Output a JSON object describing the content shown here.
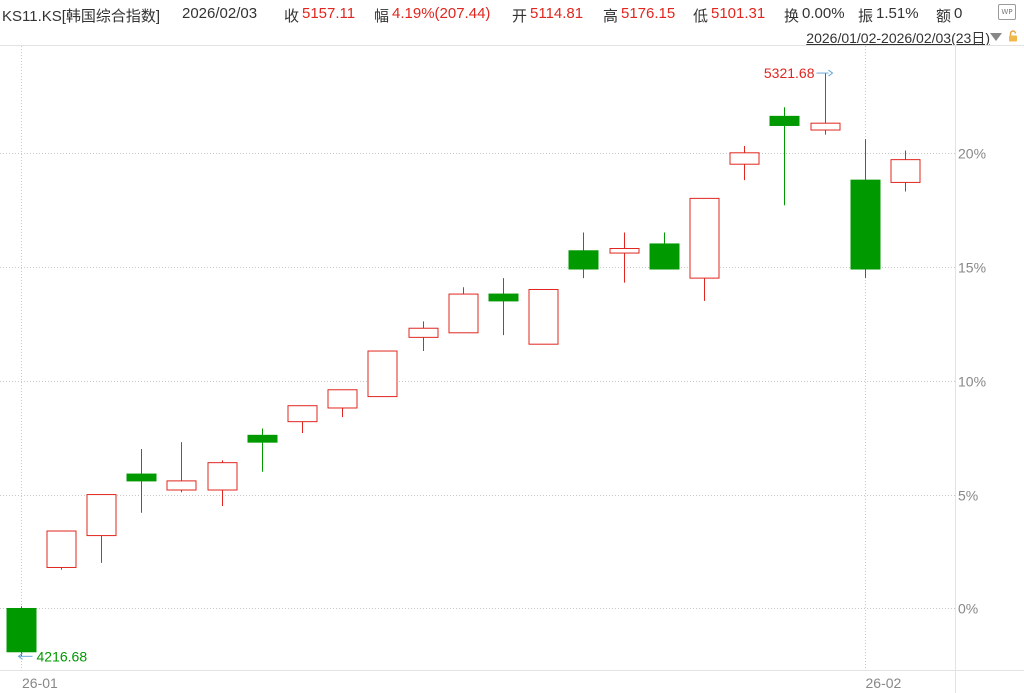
{
  "header": {
    "symbol": "KS11.KS[韩国综合指数]",
    "date": "2026/02/03",
    "close_label": "收",
    "close_value": "5157.11",
    "change_label": "幅",
    "change_value": "4.19%(207.44)",
    "open_label": "开",
    "open_value": "5114.81",
    "high_label": "高",
    "high_value": "5176.15",
    "low_label": "低",
    "low_value": "5101.31",
    "turnover_label": "换",
    "turnover_value": "0.00%",
    "amplitude_label": "振",
    "amplitude_value": "1.51%",
    "amount_label": "额",
    "amount_value": "0",
    "range": "2026/01/02-2026/02/03(23日)"
  },
  "icons": {
    "wp": "WP",
    "range_dropdown": "triangle-down-icon",
    "lock": "lock-icon"
  },
  "colors": {
    "up": "#e0261e",
    "down": "#009900",
    "max_annotation": "#e0261e",
    "min_annotation": "#009900",
    "grid": "#c8c8c8"
  },
  "chart_data": {
    "type": "candlestick",
    "y_unit": "percent change vs first open",
    "y_ticks": [
      "20%",
      "15%",
      "10%",
      "5%",
      "0%"
    ],
    "y_tick_values": [
      20,
      15,
      10,
      5,
      0
    ],
    "ylim": [
      -2.7,
      24.6
    ],
    "x_ticks": [
      "26-01",
      "26-02"
    ],
    "x_tick_index": [
      0,
      21
    ],
    "candles": [
      {
        "o": 0.0,
        "h": 0.1,
        "l": -2.1,
        "c": -1.9
      },
      {
        "o": 1.8,
        "h": 3.4,
        "l": 1.7,
        "c": 3.4
      },
      {
        "o": 3.2,
        "h": 5.0,
        "l": 2.0,
        "c": 5.0
      },
      {
        "o": 5.9,
        "h": 7.0,
        "l": 4.2,
        "c": 5.6
      },
      {
        "o": 5.2,
        "h": 7.3,
        "l": 5.1,
        "c": 5.6
      },
      {
        "o": 5.2,
        "h": 6.5,
        "l": 4.5,
        "c": 6.4
      },
      {
        "o": 7.6,
        "h": 7.9,
        "l": 6.0,
        "c": 7.3
      },
      {
        "o": 8.2,
        "h": 8.9,
        "l": 7.7,
        "c": 8.9
      },
      {
        "o": 8.8,
        "h": 9.6,
        "l": 8.4,
        "c": 9.6
      },
      {
        "o": 9.3,
        "h": 11.3,
        "l": 9.3,
        "c": 11.3
      },
      {
        "o": 11.9,
        "h": 12.6,
        "l": 11.3,
        "c": 12.3
      },
      {
        "o": 12.1,
        "h": 14.1,
        "l": 12.1,
        "c": 13.8
      },
      {
        "o": 13.8,
        "h": 14.5,
        "l": 12.0,
        "c": 13.5
      },
      {
        "o": 11.6,
        "h": 14.0,
        "l": 11.6,
        "c": 14.0
      },
      {
        "o": 15.7,
        "h": 16.5,
        "l": 14.5,
        "c": 14.9
      },
      {
        "o": 15.6,
        "h": 16.5,
        "l": 14.3,
        "c": 15.8
      },
      {
        "o": 16.0,
        "h": 16.5,
        "l": 14.9,
        "c": 14.9
      },
      {
        "o": 14.5,
        "h": 18.0,
        "l": 13.5,
        "c": 18.0
      },
      {
        "o": 19.5,
        "h": 20.3,
        "l": 18.8,
        "c": 20.0
      },
      {
        "o": 21.6,
        "h": 22.0,
        "l": 17.7,
        "c": 21.2
      },
      {
        "o": 21.0,
        "h": 23.5,
        "l": 20.8,
        "c": 21.3
      },
      {
        "o": 18.8,
        "h": 20.6,
        "l": 14.5,
        "c": 14.9
      },
      {
        "o": 18.7,
        "h": 20.1,
        "l": 18.3,
        "c": 19.7
      }
    ],
    "annotations": {
      "max_value": "5321.68",
      "max_index": 20,
      "min_value": "4216.68",
      "min_index": 0
    }
  }
}
